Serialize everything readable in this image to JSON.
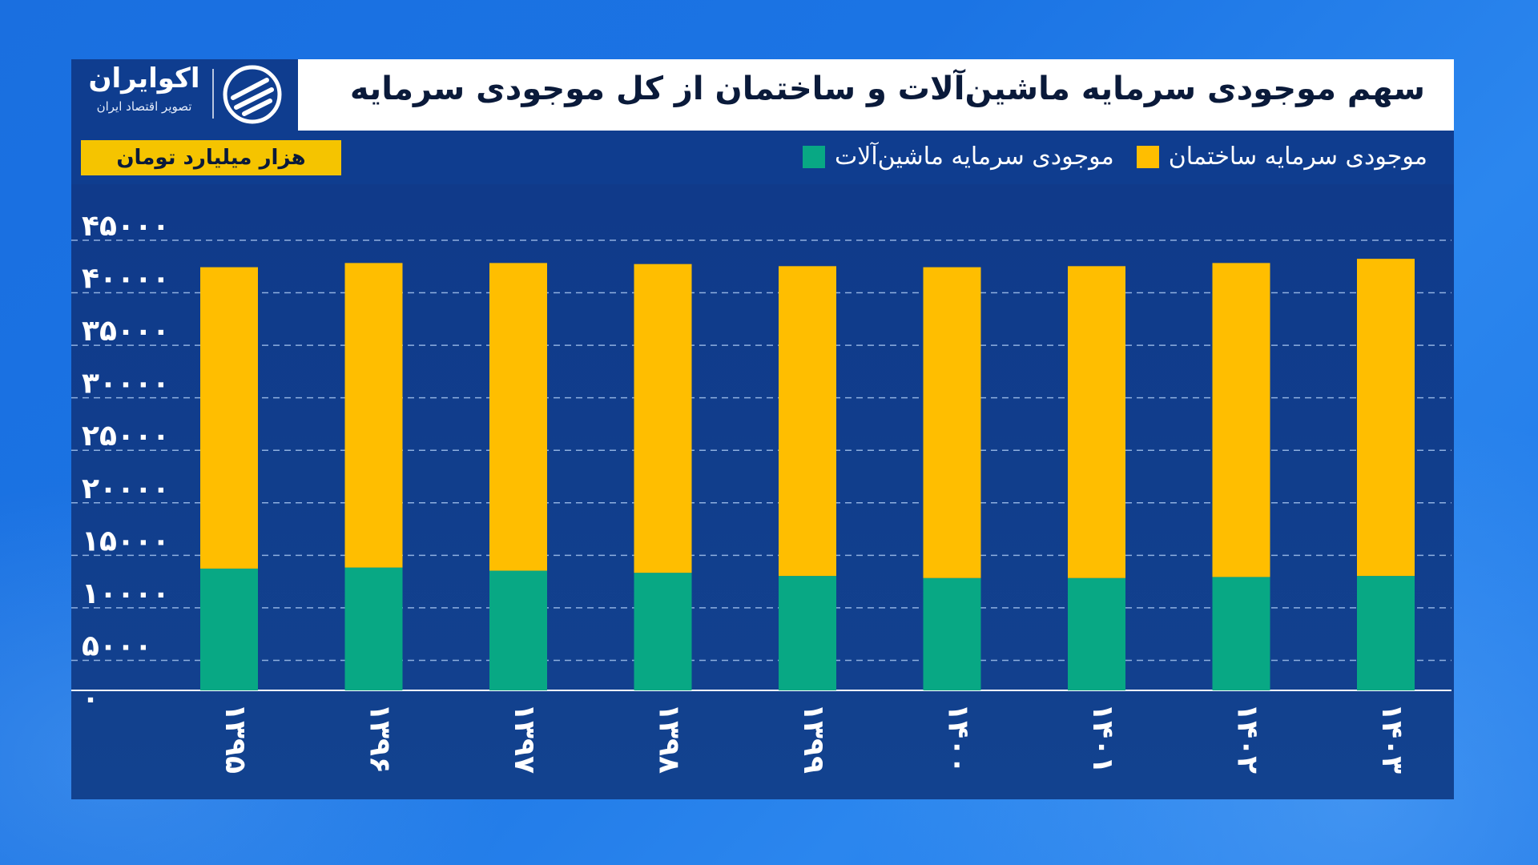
{
  "title": "سهم موجودی سرمایه ماشین‌آلات و ساختمان از کل موجودی سرمایه",
  "logo": {
    "name": "اکوایران",
    "subtitle": "تصویر اقتصاد ایران"
  },
  "unit_badge": "هزار میلیارد تومان",
  "colors": {
    "machinery": "#08a884",
    "buildings": "#ffbe00",
    "grid": "#8fb0e0",
    "axis": "#ffffff"
  },
  "legend": [
    {
      "label": "موجودی سرمایه ماشین‌آلات",
      "color": "#08a884"
    },
    {
      "label": "موجودی سرمایه ساختمان",
      "color": "#ffbe00"
    }
  ],
  "chart_data": {
    "type": "bar",
    "stacked": true,
    "categories": [
      "۱۳۹۵",
      "۱۳۹۶",
      "۱۳۹۷",
      "۱۳۹۸",
      "۱۳۹۹",
      "۱۴۰۰",
      "۱۴۰۱",
      "۱۴۰۲",
      "۱۴۰۳"
    ],
    "series": [
      {
        "name": "موجودی سرمایه ماشین‌آلات",
        "values": [
          11600,
          11700,
          11400,
          11200,
          10900,
          10700,
          10700,
          10800,
          10900
        ]
      },
      {
        "name": "موجودی سرمایه ساختمان",
        "values": [
          28700,
          29000,
          29300,
          29400,
          29500,
          29600,
          29700,
          29900,
          30200
        ]
      }
    ],
    "y_ticks": [
      "۰",
      "۵۰۰۰",
      "۱۰۰۰۰",
      "۱۵۰۰۰",
      "۲۰۰۰۰",
      "۲۵۰۰۰",
      "۳۰۰۰۰",
      "۳۵۰۰۰",
      "۴۰۰۰۰",
      "۴۵۰۰۰"
    ],
    "ylim": [
      0,
      45000
    ],
    "grid": true,
    "legend_position": "top"
  }
}
